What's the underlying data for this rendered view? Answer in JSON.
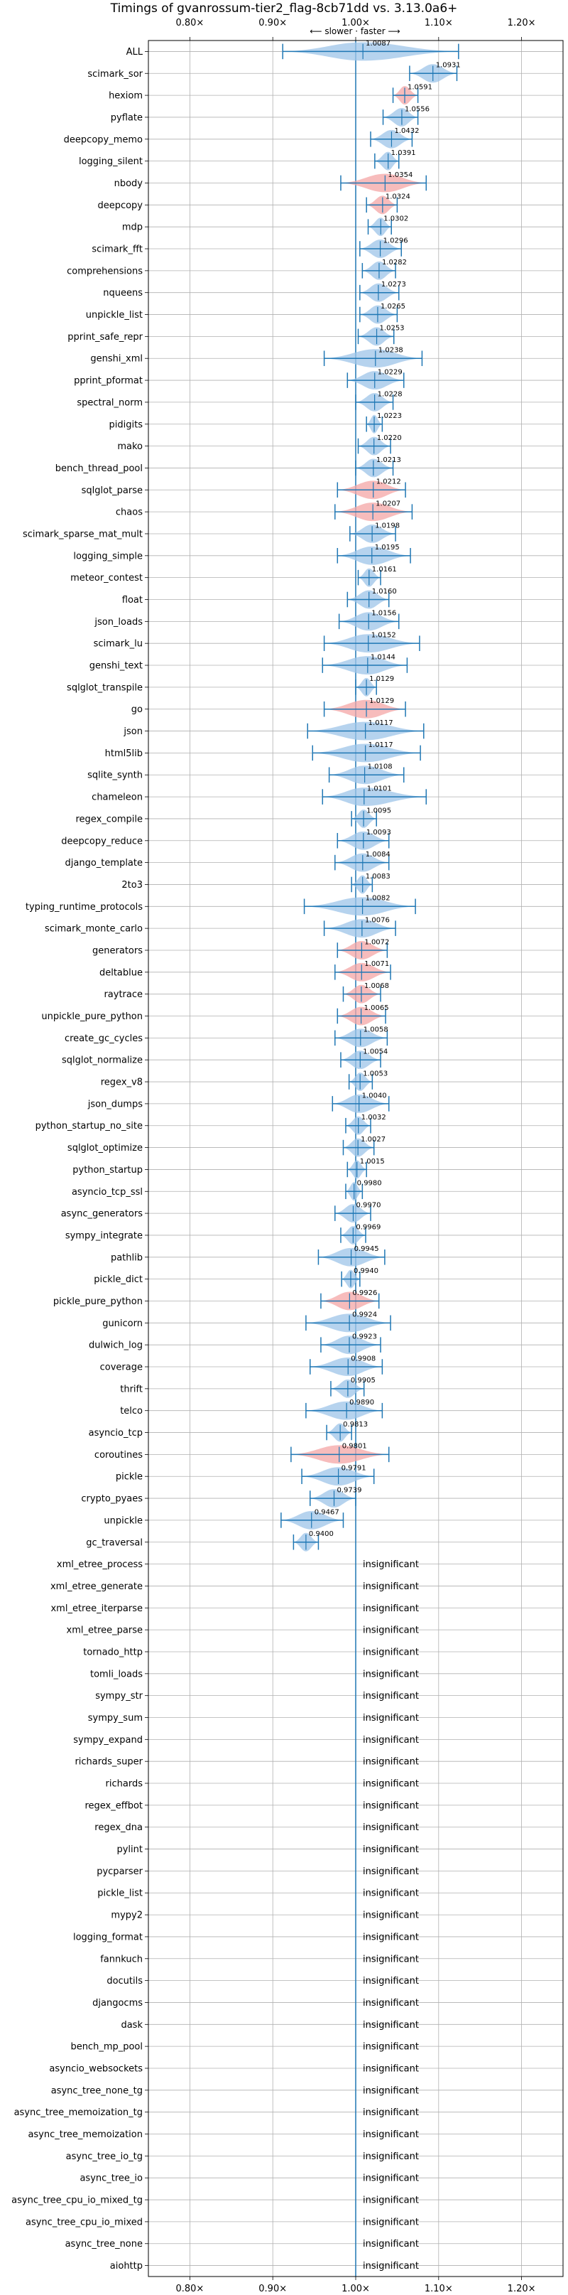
{
  "chart_data": {
    "type": "violin",
    "title": "Timings of gvanrossum-tier2_flag-8cb71dd vs. 3.13.0a6+",
    "direction_label": "⟵ slower · faster ⟶",
    "xlim": [
      0.75,
      1.25
    ],
    "xticks": [
      0.8,
      0.9,
      1.0,
      1.1,
      1.2
    ],
    "xtick_labels": [
      "0.80×",
      "0.90×",
      "1.00×",
      "1.10×",
      "1.20×"
    ],
    "grid": true,
    "insignificant_label": "insignificant",
    "colors": {
      "faster": "#9ec4e8",
      "slower": "#f4a6a6",
      "errorbar": "#1f77b4",
      "refline": "#1f77b4",
      "grid": "#b0b0b0"
    },
    "benchmarks": [
      {
        "name": "ALL",
        "value": 1.0087,
        "label": "1.0087",
        "lo": 0.912,
        "hi": 1.124,
        "significant": true,
        "slower": false
      },
      {
        "name": "scimark_sor",
        "value": 1.0931,
        "label": "1.0931",
        "lo": 1.065,
        "hi": 1.122,
        "significant": true,
        "slower": false
      },
      {
        "name": "hexiom",
        "value": 1.0591,
        "label": "1.0591",
        "lo": 1.045,
        "hi": 1.075,
        "significant": true,
        "slower": true
      },
      {
        "name": "pyflate",
        "value": 1.0556,
        "label": "1.0556",
        "lo": 1.033,
        "hi": 1.075,
        "significant": true,
        "slower": false
      },
      {
        "name": "deepcopy_memo",
        "value": 1.0432,
        "label": "1.0432",
        "lo": 1.018,
        "hi": 1.068,
        "significant": true,
        "slower": false
      },
      {
        "name": "logging_silent",
        "value": 1.0391,
        "label": "1.0391",
        "lo": 1.023,
        "hi": 1.052,
        "significant": true,
        "slower": false
      },
      {
        "name": "nbody",
        "value": 1.0354,
        "label": "1.0354",
        "lo": 0.982,
        "hi": 1.085,
        "significant": true,
        "slower": true
      },
      {
        "name": "deepcopy",
        "value": 1.0324,
        "label": "1.0324",
        "lo": 1.013,
        "hi": 1.05,
        "significant": true,
        "slower": true
      },
      {
        "name": "mdp",
        "value": 1.0302,
        "label": "1.0302",
        "lo": 1.015,
        "hi": 1.043,
        "significant": true,
        "slower": false
      },
      {
        "name": "scimark_fft",
        "value": 1.0296,
        "label": "1.0296",
        "lo": 1.005,
        "hi": 1.055,
        "significant": true,
        "slower": false
      },
      {
        "name": "comprehensions",
        "value": 1.0282,
        "label": "1.0282",
        "lo": 1.008,
        "hi": 1.048,
        "significant": true,
        "slower": false
      },
      {
        "name": "nqueens",
        "value": 1.0273,
        "label": "1.0273",
        "lo": 1.005,
        "hi": 1.052,
        "significant": true,
        "slower": false
      },
      {
        "name": "unpickle_list",
        "value": 1.0265,
        "label": "1.0265",
        "lo": 1.005,
        "hi": 1.05,
        "significant": true,
        "slower": false
      },
      {
        "name": "pprint_safe_repr",
        "value": 1.0253,
        "label": "1.0253",
        "lo": 1.003,
        "hi": 1.046,
        "significant": true,
        "slower": false
      },
      {
        "name": "genshi_xml",
        "value": 1.0238,
        "label": "1.0238",
        "lo": 0.962,
        "hi": 1.08,
        "significant": true,
        "slower": false
      },
      {
        "name": "pprint_pformat",
        "value": 1.0229,
        "label": "1.0229",
        "lo": 0.99,
        "hi": 1.058,
        "significant": true,
        "slower": false
      },
      {
        "name": "spectral_norm",
        "value": 1.0228,
        "label": "1.0228",
        "lo": 1.0,
        "hi": 1.045,
        "significant": true,
        "slower": false
      },
      {
        "name": "pidigits",
        "value": 1.0223,
        "label": "1.0223",
        "lo": 1.013,
        "hi": 1.032,
        "significant": true,
        "slower": false
      },
      {
        "name": "mako",
        "value": 1.022,
        "label": "1.0220",
        "lo": 1.003,
        "hi": 1.042,
        "significant": true,
        "slower": false
      },
      {
        "name": "bench_thread_pool",
        "value": 1.0213,
        "label": "1.0213",
        "lo": 1.0,
        "hi": 1.045,
        "significant": true,
        "slower": false
      },
      {
        "name": "sqlglot_parse",
        "value": 1.0212,
        "label": "1.0212",
        "lo": 0.978,
        "hi": 1.06,
        "significant": true,
        "slower": true
      },
      {
        "name": "chaos",
        "value": 1.0207,
        "label": "1.0207",
        "lo": 0.975,
        "hi": 1.068,
        "significant": true,
        "slower": true
      },
      {
        "name": "scimark_sparse_mat_mult",
        "value": 1.0198,
        "label": "1.0198",
        "lo": 0.993,
        "hi": 1.048,
        "significant": true,
        "slower": false
      },
      {
        "name": "logging_simple",
        "value": 1.0195,
        "label": "1.0195",
        "lo": 0.978,
        "hi": 1.066,
        "significant": true,
        "slower": false
      },
      {
        "name": "meteor_contest",
        "value": 1.0161,
        "label": "1.0161",
        "lo": 1.003,
        "hi": 1.03,
        "significant": true,
        "slower": false
      },
      {
        "name": "float",
        "value": 1.016,
        "label": "1.0160",
        "lo": 0.99,
        "hi": 1.04,
        "significant": true,
        "slower": false
      },
      {
        "name": "json_loads",
        "value": 1.0156,
        "label": "1.0156",
        "lo": 0.98,
        "hi": 1.052,
        "significant": true,
        "slower": false
      },
      {
        "name": "scimark_lu",
        "value": 1.0152,
        "label": "1.0152",
        "lo": 0.962,
        "hi": 1.077,
        "significant": true,
        "slower": false
      },
      {
        "name": "genshi_text",
        "value": 1.0144,
        "label": "1.0144",
        "lo": 0.96,
        "hi": 1.062,
        "significant": true,
        "slower": false
      },
      {
        "name": "sqlglot_transpile",
        "value": 1.0129,
        "label": "1.0129",
        "lo": 1.0,
        "hi": 1.025,
        "significant": true,
        "slower": false
      },
      {
        "name": "go",
        "value": 1.0129,
        "label": "1.0129",
        "lo": 0.962,
        "hi": 1.06,
        "significant": true,
        "slower": true
      },
      {
        "name": "json",
        "value": 1.0117,
        "label": "1.0117",
        "lo": 0.942,
        "hi": 1.082,
        "significant": true,
        "slower": false
      },
      {
        "name": "html5lib",
        "value": 1.0117,
        "label": "1.0117",
        "lo": 0.948,
        "hi": 1.078,
        "significant": true,
        "slower": false
      },
      {
        "name": "sqlite_synth",
        "value": 1.0108,
        "label": "1.0108",
        "lo": 0.968,
        "hi": 1.058,
        "significant": true,
        "slower": false
      },
      {
        "name": "chameleon",
        "value": 1.0101,
        "label": "1.0101",
        "lo": 0.96,
        "hi": 1.085,
        "significant": true,
        "slower": false
      },
      {
        "name": "regex_compile",
        "value": 1.0095,
        "label": "1.0095",
        "lo": 0.995,
        "hi": 1.025,
        "significant": true,
        "slower": false
      },
      {
        "name": "deepcopy_reduce",
        "value": 1.0093,
        "label": "1.0093",
        "lo": 0.978,
        "hi": 1.04,
        "significant": true,
        "slower": false
      },
      {
        "name": "django_template",
        "value": 1.0084,
        "label": "1.0084",
        "lo": 0.975,
        "hi": 1.04,
        "significant": true,
        "slower": false
      },
      {
        "name": "2to3",
        "value": 1.0083,
        "label": "1.0083",
        "lo": 0.995,
        "hi": 1.02,
        "significant": true,
        "slower": false
      },
      {
        "name": "typing_runtime_protocols",
        "value": 1.0082,
        "label": "1.0082",
        "lo": 0.938,
        "hi": 1.072,
        "significant": true,
        "slower": false
      },
      {
        "name": "scimark_monte_carlo",
        "value": 1.0076,
        "label": "1.0076",
        "lo": 0.962,
        "hi": 1.048,
        "significant": true,
        "slower": false
      },
      {
        "name": "generators",
        "value": 1.0072,
        "label": "1.0072",
        "lo": 0.978,
        "hi": 1.038,
        "significant": true,
        "slower": true
      },
      {
        "name": "deltablue",
        "value": 1.0071,
        "label": "1.0071",
        "lo": 0.975,
        "hi": 1.042,
        "significant": true,
        "slower": true
      },
      {
        "name": "raytrace",
        "value": 1.0068,
        "label": "1.0068",
        "lo": 0.985,
        "hi": 1.03,
        "significant": true,
        "slower": true
      },
      {
        "name": "unpickle_pure_python",
        "value": 1.0065,
        "label": "1.0065",
        "lo": 0.978,
        "hi": 1.036,
        "significant": true,
        "slower": true
      },
      {
        "name": "create_gc_cycles",
        "value": 1.0058,
        "label": "1.0058",
        "lo": 0.975,
        "hi": 1.038,
        "significant": true,
        "slower": false
      },
      {
        "name": "sqlglot_normalize",
        "value": 1.0054,
        "label": "1.0054",
        "lo": 0.982,
        "hi": 1.03,
        "significant": true,
        "slower": false
      },
      {
        "name": "regex_v8",
        "value": 1.0053,
        "label": "1.0053",
        "lo": 0.992,
        "hi": 1.02,
        "significant": true,
        "slower": false
      },
      {
        "name": "json_dumps",
        "value": 1.004,
        "label": "1.0040",
        "lo": 0.972,
        "hi": 1.04,
        "significant": true,
        "slower": false
      },
      {
        "name": "python_startup_no_site",
        "value": 1.0032,
        "label": "1.0032",
        "lo": 0.988,
        "hi": 1.018,
        "significant": true,
        "slower": false
      },
      {
        "name": "sqlglot_optimize",
        "value": 1.0027,
        "label": "1.0027",
        "lo": 0.985,
        "hi": 1.022,
        "significant": true,
        "slower": false
      },
      {
        "name": "python_startup",
        "value": 1.0015,
        "label": "1.0015",
        "lo": 0.99,
        "hi": 1.013,
        "significant": true,
        "slower": false
      },
      {
        "name": "asyncio_tcp_ssl",
        "value": 0.998,
        "label": "0.9980",
        "lo": 0.988,
        "hi": 1.008,
        "significant": true,
        "slower": false
      },
      {
        "name": "async_generators",
        "value": 0.997,
        "label": "0.9970",
        "lo": 0.975,
        "hi": 1.018,
        "significant": true,
        "slower": false
      },
      {
        "name": "sympy_integrate",
        "value": 0.9969,
        "label": "0.9969",
        "lo": 0.982,
        "hi": 1.012,
        "significant": true,
        "slower": false
      },
      {
        "name": "pathlib",
        "value": 0.9945,
        "label": "0.9945",
        "lo": 0.955,
        "hi": 1.035,
        "significant": true,
        "slower": false
      },
      {
        "name": "pickle_dict",
        "value": 0.994,
        "label": "0.9940",
        "lo": 0.983,
        "hi": 1.005,
        "significant": true,
        "slower": false
      },
      {
        "name": "pickle_pure_python",
        "value": 0.9926,
        "label": "0.9926",
        "lo": 0.958,
        "hi": 1.028,
        "significant": true,
        "slower": true
      },
      {
        "name": "gunicorn",
        "value": 0.9924,
        "label": "0.9924",
        "lo": 0.94,
        "hi": 1.042,
        "significant": true,
        "slower": false
      },
      {
        "name": "dulwich_log",
        "value": 0.9923,
        "label": "0.9923",
        "lo": 0.958,
        "hi": 1.03,
        "significant": true,
        "slower": false
      },
      {
        "name": "coverage",
        "value": 0.9908,
        "label": "0.9908",
        "lo": 0.945,
        "hi": 1.032,
        "significant": true,
        "slower": false
      },
      {
        "name": "thrift",
        "value": 0.9905,
        "label": "0.9905",
        "lo": 0.97,
        "hi": 1.01,
        "significant": true,
        "slower": false
      },
      {
        "name": "telco",
        "value": 0.989,
        "label": "0.9890",
        "lo": 0.94,
        "hi": 1.032,
        "significant": true,
        "slower": false
      },
      {
        "name": "asyncio_tcp",
        "value": 0.9813,
        "label": "0.9813",
        "lo": 0.965,
        "hi": 0.995,
        "significant": true,
        "slower": false
      },
      {
        "name": "coroutines",
        "value": 0.9801,
        "label": "0.9801",
        "lo": 0.922,
        "hi": 1.04,
        "significant": true,
        "slower": true
      },
      {
        "name": "pickle",
        "value": 0.9791,
        "label": "0.9791",
        "lo": 0.935,
        "hi": 1.022,
        "significant": true,
        "slower": false
      },
      {
        "name": "crypto_pyaes",
        "value": 0.9739,
        "label": "0.9739",
        "lo": 0.945,
        "hi": 1.0,
        "significant": true,
        "slower": false
      },
      {
        "name": "unpickle",
        "value": 0.9467,
        "label": "0.9467",
        "lo": 0.91,
        "hi": 0.985,
        "significant": true,
        "slower": false
      },
      {
        "name": "gc_traversal",
        "value": 0.94,
        "label": "0.9400",
        "lo": 0.925,
        "hi": 0.955,
        "significant": true,
        "slower": false
      },
      {
        "name": "xml_etree_process",
        "significant": false
      },
      {
        "name": "xml_etree_generate",
        "significant": false
      },
      {
        "name": "xml_etree_iterparse",
        "significant": false
      },
      {
        "name": "xml_etree_parse",
        "significant": false
      },
      {
        "name": "tornado_http",
        "significant": false
      },
      {
        "name": "tomli_loads",
        "significant": false
      },
      {
        "name": "sympy_str",
        "significant": false
      },
      {
        "name": "sympy_sum",
        "significant": false
      },
      {
        "name": "sympy_expand",
        "significant": false
      },
      {
        "name": "richards_super",
        "significant": false
      },
      {
        "name": "richards",
        "significant": false
      },
      {
        "name": "regex_effbot",
        "significant": false
      },
      {
        "name": "regex_dna",
        "significant": false
      },
      {
        "name": "pylint",
        "significant": false
      },
      {
        "name": "pycparser",
        "significant": false
      },
      {
        "name": "pickle_list",
        "significant": false
      },
      {
        "name": "mypy2",
        "significant": false
      },
      {
        "name": "logging_format",
        "significant": false
      },
      {
        "name": "fannkuch",
        "significant": false
      },
      {
        "name": "docutils",
        "significant": false
      },
      {
        "name": "djangocms",
        "significant": false
      },
      {
        "name": "dask",
        "significant": false
      },
      {
        "name": "bench_mp_pool",
        "significant": false
      },
      {
        "name": "asyncio_websockets",
        "significant": false
      },
      {
        "name": "async_tree_none_tg",
        "significant": false
      },
      {
        "name": "async_tree_memoization_tg",
        "significant": false
      },
      {
        "name": "async_tree_memoization",
        "significant": false
      },
      {
        "name": "async_tree_io_tg",
        "significant": false
      },
      {
        "name": "async_tree_io",
        "significant": false
      },
      {
        "name": "async_tree_cpu_io_mixed_tg",
        "significant": false
      },
      {
        "name": "async_tree_cpu_io_mixed",
        "significant": false
      },
      {
        "name": "async_tree_none",
        "significant": false
      },
      {
        "name": "aiohttp",
        "significant": false
      }
    ]
  }
}
